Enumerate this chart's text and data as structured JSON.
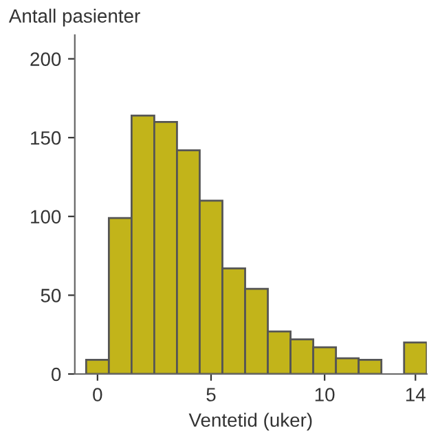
{
  "chart_data": {
    "type": "histogram",
    "ylabel": "Antall pasienter",
    "xlabel": "Ventetid (uker)",
    "bins": [
      -0.5,
      0.5,
      1.5,
      2.5,
      3.5,
      4.5,
      5.5,
      6.5,
      7.5,
      8.5,
      9.5,
      10.5,
      11.5,
      12.5,
      13.5,
      14.5
    ],
    "values": [
      9,
      99,
      164,
      160,
      142,
      110,
      67,
      54,
      27,
      22,
      17,
      10,
      9,
      0,
      20
    ],
    "color": "#c2b41a",
    "xlim": [
      -1,
      14.5
    ],
    "xticks": [
      0,
      5,
      10,
      14
    ],
    "ylim": [
      0,
      215
    ],
    "yticks": [
      0,
      50,
      100,
      150,
      200
    ],
    "grid": false,
    "legend": false
  }
}
